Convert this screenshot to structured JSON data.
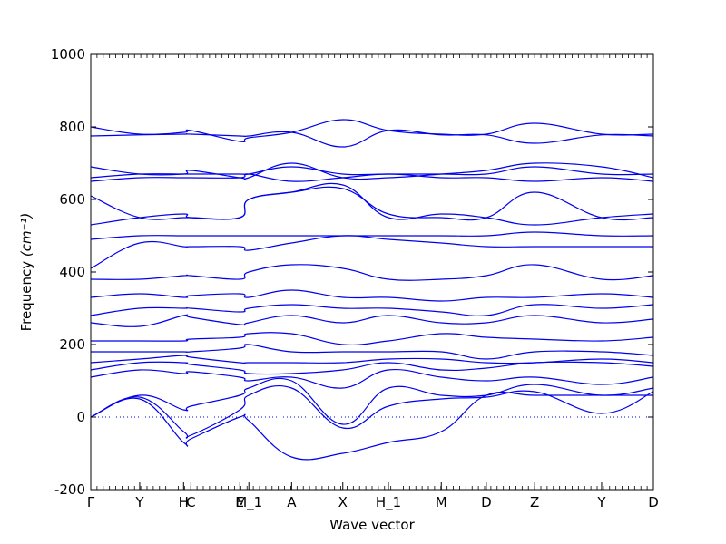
{
  "chart_data": {
    "type": "line",
    "xlabel": "Wave vector",
    "ylabel": "Frequency",
    "ylabel_unit": "(cm⁻¹)",
    "ylim": [
      -200,
      1000
    ],
    "yticks": [
      -200,
      0,
      200,
      400,
      600,
      800,
      1000
    ],
    "xlim": [
      0,
      1
    ],
    "high_symmetry_points": [
      {
        "label": "Γ",
        "x": 0.0
      },
      {
        "label": "Y",
        "x": 0.087
      },
      {
        "label": "H",
        "x": 0.165
      },
      {
        "label": "C",
        "x": 0.178
      },
      {
        "label": "E",
        "x": 0.265
      },
      {
        "label": "M_1",
        "x": 0.281
      },
      {
        "label": "A",
        "x": 0.357
      },
      {
        "label": "X",
        "x": 0.448
      },
      {
        "label": "H_1",
        "x": 0.529
      },
      {
        "label": "M",
        "x": 0.623
      },
      {
        "label": "D",
        "x": 0.703
      },
      {
        "label": "Z",
        "x": 0.789
      },
      {
        "label": "Y",
        "x": 0.908
      },
      {
        "label": "D",
        "x": 1.0
      }
    ],
    "zero_line": 0,
    "series": [
      {
        "x": [
          0,
          0.087,
          0.165,
          0.178,
          0.265,
          0.281,
          0.357,
          0.448,
          0.529,
          0.623,
          0.703,
          0.789,
          0.908,
          1.0
        ],
        "y": [
          0,
          50,
          -70,
          -60,
          0,
          -10,
          -110,
          -100,
          -70,
          -40,
          60,
          60,
          60,
          60
        ]
      },
      {
        "x": [
          0,
          0.087,
          0.165,
          0.178,
          0.265,
          0.281,
          0.357,
          0.448,
          0.529,
          0.623,
          0.703,
          0.789,
          0.908,
          1.0
        ],
        "y": [
          0,
          55,
          -40,
          -50,
          20,
          60,
          80,
          -30,
          30,
          50,
          55,
          70,
          10,
          70
        ]
      },
      {
        "x": [
          0,
          0.087,
          0.165,
          0.178,
          0.265,
          0.281,
          0.357,
          0.448,
          0.529,
          0.623,
          0.703,
          0.789,
          0.908,
          1.0
        ],
        "y": [
          0,
          60,
          20,
          30,
          60,
          80,
          100,
          -20,
          80,
          60,
          60,
          90,
          60,
          80
        ]
      },
      {
        "x": [
          0,
          0.087,
          0.165,
          0.178,
          0.265,
          0.281,
          0.357,
          0.448,
          0.529,
          0.623,
          0.703,
          0.789,
          0.908,
          1.0
        ],
        "y": [
          110,
          130,
          120,
          125,
          110,
          100,
          110,
          80,
          130,
          110,
          100,
          110,
          90,
          110
        ]
      },
      {
        "x": [
          0,
          0.087,
          0.165,
          0.178,
          0.265,
          0.281,
          0.357,
          0.448,
          0.529,
          0.623,
          0.703,
          0.789,
          0.908,
          1.0
        ],
        "y": [
          130,
          150,
          150,
          145,
          130,
          120,
          120,
          130,
          150,
          130,
          135,
          150,
          150,
          140
        ]
      },
      {
        "x": [
          0,
          0.087,
          0.165,
          0.178,
          0.265,
          0.281,
          0.357,
          0.448,
          0.529,
          0.623,
          0.703,
          0.789,
          0.908,
          1.0
        ],
        "y": [
          150,
          160,
          170,
          165,
          150,
          150,
          150,
          150,
          160,
          160,
          150,
          150,
          160,
          150
        ]
      },
      {
        "x": [
          0,
          0.087,
          0.165,
          0.178,
          0.265,
          0.281,
          0.357,
          0.448,
          0.529,
          0.623,
          0.703,
          0.789,
          0.908,
          1.0
        ],
        "y": [
          180,
          180,
          180,
          180,
          190,
          200,
          180,
          180,
          180,
          180,
          160,
          180,
          180,
          170
        ]
      },
      {
        "x": [
          0,
          0.087,
          0.165,
          0.178,
          0.265,
          0.281,
          0.357,
          0.448,
          0.529,
          0.623,
          0.703,
          0.789,
          0.908,
          1.0
        ],
        "y": [
          210,
          210,
          210,
          215,
          220,
          230,
          230,
          200,
          210,
          230,
          220,
          215,
          210,
          220
        ]
      },
      {
        "x": [
          0,
          0.087,
          0.165,
          0.178,
          0.265,
          0.281,
          0.357,
          0.448,
          0.529,
          0.623,
          0.703,
          0.789,
          0.908,
          1.0
        ],
        "y": [
          260,
          250,
          280,
          275,
          255,
          260,
          280,
          260,
          280,
          260,
          260,
          280,
          260,
          270
        ]
      },
      {
        "x": [
          0,
          0.087,
          0.165,
          0.178,
          0.265,
          0.281,
          0.357,
          0.448,
          0.529,
          0.623,
          0.703,
          0.789,
          0.908,
          1.0
        ],
        "y": [
          280,
          300,
          300,
          300,
          290,
          300,
          310,
          300,
          300,
          290,
          280,
          310,
          300,
          310
        ]
      },
      {
        "x": [
          0,
          0.087,
          0.165,
          0.178,
          0.265,
          0.281,
          0.357,
          0.448,
          0.529,
          0.623,
          0.703,
          0.789,
          0.908,
          1.0
        ],
        "y": [
          330,
          340,
          330,
          335,
          340,
          330,
          350,
          330,
          330,
          320,
          330,
          330,
          340,
          330
        ]
      },
      {
        "x": [
          0,
          0.087,
          0.165,
          0.178,
          0.265,
          0.281,
          0.357,
          0.448,
          0.529,
          0.623,
          0.703,
          0.789,
          0.908,
          1.0
        ],
        "y": [
          380,
          380,
          390,
          390,
          380,
          400,
          420,
          410,
          380,
          380,
          390,
          420,
          380,
          390
        ]
      },
      {
        "x": [
          0,
          0.087,
          0.165,
          0.178,
          0.265,
          0.281,
          0.357,
          0.448,
          0.529,
          0.623,
          0.703,
          0.789,
          0.908,
          1.0
        ],
        "y": [
          410,
          480,
          470,
          470,
          470,
          460,
          480,
          500,
          490,
          480,
          470,
          470,
          470,
          470
        ]
      },
      {
        "x": [
          0,
          0.087,
          0.165,
          0.178,
          0.265,
          0.281,
          0.357,
          0.448,
          0.529,
          0.623,
          0.703,
          0.789,
          0.908,
          1.0
        ],
        "y": [
          490,
          500,
          500,
          500,
          500,
          500,
          500,
          500,
          500,
          500,
          500,
          510,
          500,
          500
        ]
      },
      {
        "x": [
          0,
          0.087,
          0.165,
          0.178,
          0.265,
          0.281,
          0.357,
          0.448,
          0.529,
          0.623,
          0.703,
          0.789,
          0.908,
          1.0
        ],
        "y": [
          530,
          550,
          560,
          550,
          550,
          600,
          620,
          630,
          560,
          550,
          550,
          620,
          550,
          550
        ]
      },
      {
        "x": [
          0,
          0.087,
          0.165,
          0.178,
          0.265,
          0.281,
          0.357,
          0.448,
          0.529,
          0.623,
          0.703,
          0.789,
          0.908,
          1.0
        ],
        "y": [
          610,
          550,
          550,
          550,
          550,
          600,
          620,
          640,
          550,
          560,
          550,
          530,
          550,
          560
        ]
      },
      {
        "x": [
          0,
          0.087,
          0.165,
          0.178,
          0.265,
          0.281,
          0.357,
          0.448,
          0.529,
          0.623,
          0.703,
          0.789,
          0.908,
          1.0
        ],
        "y": [
          650,
          660,
          660,
          660,
          660,
          670,
          650,
          660,
          670,
          660,
          660,
          650,
          660,
          650
        ]
      },
      {
        "x": [
          0,
          0.087,
          0.165,
          0.178,
          0.265,
          0.281,
          0.357,
          0.448,
          0.529,
          0.623,
          0.703,
          0.789,
          0.908,
          1.0
        ],
        "y": [
          660,
          670,
          670,
          670,
          670,
          670,
          690,
          670,
          670,
          670,
          670,
          690,
          670,
          670
        ]
      },
      {
        "x": [
          0,
          0.087,
          0.165,
          0.178,
          0.265,
          0.281,
          0.357,
          0.448,
          0.529,
          0.623,
          0.703,
          0.789,
          0.908,
          1.0
        ],
        "y": [
          690,
          670,
          670,
          680,
          660,
          660,
          700,
          660,
          660,
          670,
          680,
          700,
          690,
          660
        ]
      },
      {
        "x": [
          0,
          0.087,
          0.165,
          0.178,
          0.265,
          0.281,
          0.357,
          0.448,
          0.529,
          0.623,
          0.703,
          0.789,
          0.908,
          1.0
        ],
        "y": [
          775,
          778,
          780,
          780,
          775,
          775,
          785,
          745,
          790,
          778,
          778,
          755,
          778,
          775
        ]
      },
      {
        "x": [
          0,
          0.087,
          0.165,
          0.178,
          0.265,
          0.281,
          0.357,
          0.448,
          0.529,
          0.623,
          0.703,
          0.789,
          0.908,
          1.0
        ],
        "y": [
          800,
          780,
          785,
          790,
          760,
          770,
          785,
          820,
          790,
          780,
          780,
          810,
          780,
          780
        ]
      }
    ]
  }
}
